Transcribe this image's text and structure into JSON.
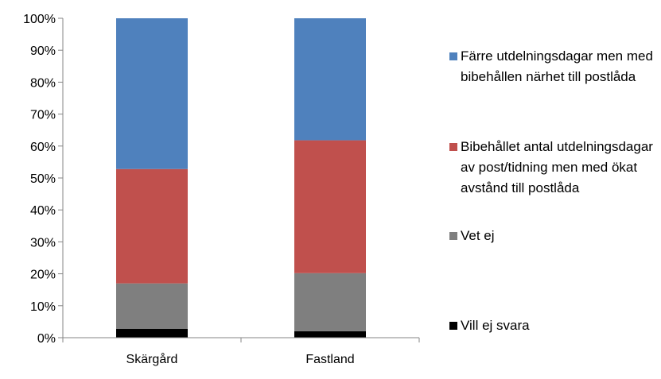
{
  "chart_data": {
    "type": "bar",
    "stacked": true,
    "categories": [
      "Skärgård",
      "Fastland"
    ],
    "series": [
      {
        "name": "Vill ej svara",
        "color": "#000000",
        "values": [
          2.8,
          2.0
        ]
      },
      {
        "name": "Vet ej",
        "color": "#7f7f7f",
        "values": [
          14.2,
          18.2
        ]
      },
      {
        "name": "Bibehållet antal utdelningsdagar av post/tidning men med ökat avstånd till postlåda",
        "color": "#c0504d",
        "values": [
          35.8,
          41.6
        ]
      },
      {
        "name": "Färre utdelningsdagar men med bibehållen närhet till postlåda",
        "color": "#4f81bd",
        "values": [
          47.2,
          38.2
        ]
      }
    ],
    "ylim": [
      0,
      100
    ],
    "yticks": [
      "0%",
      "10%",
      "20%",
      "30%",
      "40%",
      "50%",
      "60%",
      "70%",
      "80%",
      "90%",
      "100%"
    ],
    "grid": false,
    "legend_position": "right"
  }
}
